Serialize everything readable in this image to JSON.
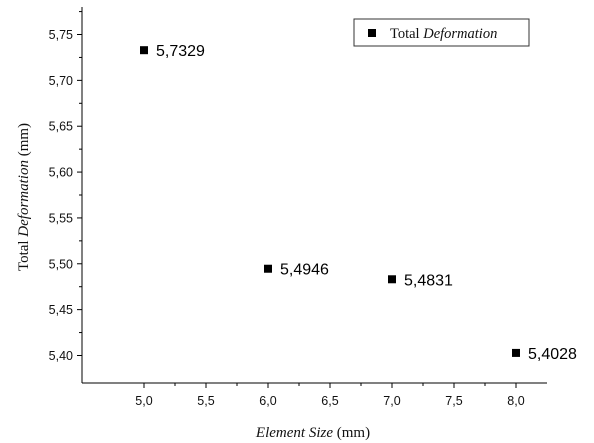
{
  "chart_data": {
    "type": "scatter",
    "x": [
      5.0,
      6.0,
      7.0,
      8.0
    ],
    "y": [
      5.7329,
      5.4946,
      5.4831,
      5.4028
    ],
    "data_labels": [
      "5,7329",
      "5,4946",
      "5,4831",
      "5,4028"
    ],
    "xlabel": {
      "pre": "",
      "italic": "Element Size",
      "post": " (mm)"
    },
    "ylabel": {
      "pre": "Total ",
      "italic": "Deformation",
      "post": " (mm)"
    },
    "xlim": [
      4.5,
      8.25
    ],
    "ylim": [
      5.37,
      5.78
    ],
    "x_ticks": [
      5.0,
      5.5,
      6.0,
      6.5,
      7.0,
      7.5,
      8.0
    ],
    "x_tick_labels": [
      "5,0",
      "5,5",
      "6,0",
      "6,5",
      "7,0",
      "7,5",
      "8,0"
    ],
    "y_ticks": [
      5.4,
      5.45,
      5.5,
      5.55,
      5.6,
      5.65,
      5.7,
      5.75
    ],
    "y_tick_labels": [
      "5,40",
      "5,45",
      "5,50",
      "5,55",
      "5,60",
      "5,65",
      "5,70",
      "5,75"
    ],
    "legend": {
      "position": "top-right",
      "pre": "Total ",
      "italic": "Deformation"
    },
    "marker": "square",
    "marker_color": "#000000",
    "grid": false
  }
}
